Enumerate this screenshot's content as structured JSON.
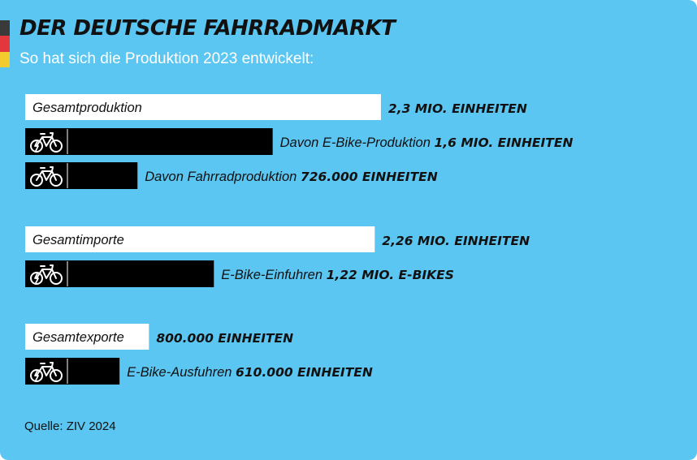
{
  "title": "DER DEUTSCHE FAHRRADMARKT",
  "subtitle": "So hat sich die Produktion 2023 entwickelt:",
  "source": "Quelle: ZIV 2024",
  "colors": {
    "background": "#5bc6f2",
    "total_bar": "#ffffff",
    "sub_bar": "#000000",
    "text": "#111111",
    "flag": [
      "#3a3a3a",
      "#e2373b",
      "#f2cb2f"
    ]
  },
  "chart_data": {
    "type": "bar",
    "orientation": "horizontal",
    "unit": "Mio. Einheiten",
    "groups": [
      {
        "total": {
          "label": "Gesamtproduktion",
          "value": 2.3,
          "value_label": "2,3 MIO. EINHEITEN"
        },
        "items": [
          {
            "label": "Davon E-Bike-Produktion",
            "value": 1.6,
            "value_label": "1,6 MIO. EINHEITEN",
            "icon": "e-bike-icon"
          },
          {
            "label": "Davon Fahrradproduktion",
            "value": 0.726,
            "value_label": "726.000 EINHEITEN",
            "icon": "bicycle-icon"
          }
        ]
      },
      {
        "total": {
          "label": "Gesamtimporte",
          "value": 2.26,
          "value_label": "2,26 MIO. EINHEITEN"
        },
        "items": [
          {
            "label": "E-Bike-Einfuhren",
            "value": 1.22,
            "value_label": "1,22 MIO. E-BIKES",
            "icon": "e-bike-icon"
          }
        ]
      },
      {
        "total": {
          "label": "Gesamtexporte",
          "value": 0.8,
          "value_label": "800.000 EINHEITEN"
        },
        "items": [
          {
            "label": "E-Bike-Ausfuhren",
            "value": 0.61,
            "value_label": "610.000 EINHEITEN",
            "icon": "e-bike-icon"
          }
        ]
      }
    ]
  }
}
